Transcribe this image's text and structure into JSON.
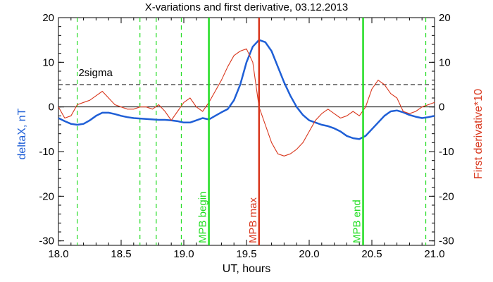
{
  "chart_data": {
    "type": "line",
    "title": "X-variations and first derivative, 03.12.2013",
    "xlabel": "UT, hours",
    "ylabel_left": "deltaX, nT",
    "ylabel_right": "First derivative*10",
    "xlim": [
      18.0,
      21.0
    ],
    "ylim": [
      -31,
      20
    ],
    "xticks": [
      "18.0",
      "18.5",
      "19.0",
      "19.5",
      "20.0",
      "20.5",
      "21.0"
    ],
    "yticks": [
      "20",
      "10",
      "0",
      "-10",
      "-20",
      "-30"
    ],
    "colors": {
      "deltaX": "#1f5fd6",
      "derivative": "#d9381e",
      "mpb_lines": "#22dd22",
      "mpb_max": "#d9381e",
      "reference": "#000000"
    },
    "sigma_label": "2sigma",
    "sigma_level": 5,
    "zero_level": 0,
    "vertical_markers": [
      {
        "x": 19.2,
        "label": "MPB begin",
        "style": "solid",
        "color": "#22dd22"
      },
      {
        "x": 19.6,
        "label": "MPB max",
        "style": "solid",
        "color": "#d9381e"
      },
      {
        "x": 20.43,
        "label": "MPB end",
        "style": "solid",
        "color": "#22dd22"
      }
    ],
    "dashed_markers": [
      18.15,
      18.65,
      18.78,
      18.98,
      20.93
    ],
    "series": [
      {
        "name": "deltaX, nT",
        "key": "deltaX",
        "x": [
          18.0,
          18.05,
          18.1,
          18.15,
          18.2,
          18.25,
          18.3,
          18.35,
          18.4,
          18.45,
          18.5,
          18.55,
          18.6,
          18.65,
          18.7,
          18.75,
          18.8,
          18.85,
          18.9,
          18.95,
          19.0,
          19.05,
          19.1,
          19.15,
          19.2,
          19.25,
          19.3,
          19.35,
          19.4,
          19.45,
          19.5,
          19.55,
          19.6,
          19.65,
          19.7,
          19.75,
          19.8,
          19.85,
          19.9,
          19.95,
          20.0,
          20.05,
          20.1,
          20.15,
          20.2,
          20.25,
          20.3,
          20.35,
          20.4,
          20.45,
          20.5,
          20.55,
          20.6,
          20.65,
          20.7,
          20.75,
          20.8,
          20.85,
          20.9,
          20.95,
          21.0
        ],
        "values": [
          -2.5,
          -3.2,
          -3.8,
          -4.0,
          -3.8,
          -3.0,
          -2.0,
          -1.3,
          -1.3,
          -1.6,
          -2.0,
          -2.3,
          -2.5,
          -2.6,
          -2.7,
          -2.8,
          -2.9,
          -2.9,
          -3.0,
          -3.2,
          -3.5,
          -3.5,
          -3.0,
          -2.5,
          -2.8,
          -2.0,
          -1.2,
          -0.5,
          1.5,
          5.0,
          10.0,
          13.5,
          15.0,
          14.5,
          12.5,
          9.0,
          5.5,
          2.5,
          0.0,
          -1.8,
          -3.0,
          -3.5,
          -4.0,
          -4.3,
          -4.8,
          -5.5,
          -6.5,
          -7.0,
          -7.2,
          -6.5,
          -5.0,
          -3.5,
          -2.0,
          -1.0,
          -0.8,
          -1.2,
          -1.8,
          -2.2,
          -2.5,
          -2.3,
          -2.0
        ]
      },
      {
        "name": "First derivative*10",
        "key": "derivative",
        "x": [
          18.0,
          18.05,
          18.1,
          18.15,
          18.2,
          18.25,
          18.3,
          18.35,
          18.4,
          18.45,
          18.5,
          18.55,
          18.6,
          18.65,
          18.7,
          18.75,
          18.8,
          18.85,
          18.9,
          18.95,
          19.0,
          19.05,
          19.1,
          19.15,
          19.2,
          19.25,
          19.3,
          19.35,
          19.4,
          19.45,
          19.5,
          19.55,
          19.6,
          19.65,
          19.7,
          19.75,
          19.8,
          19.85,
          19.9,
          19.95,
          20.0,
          20.05,
          20.1,
          20.15,
          20.2,
          20.25,
          20.3,
          20.35,
          20.4,
          20.45,
          20.5,
          20.55,
          20.6,
          20.65,
          20.7,
          20.75,
          20.8,
          20.85,
          20.9,
          20.95,
          21.0
        ],
        "values": [
          0.0,
          -2.5,
          -2.0,
          0.5,
          1.0,
          1.5,
          2.5,
          3.5,
          2.0,
          0.5,
          0.0,
          -0.5,
          -0.5,
          0.0,
          0.0,
          -0.5,
          0.5,
          -1.0,
          -3.0,
          -1.0,
          1.0,
          2.0,
          0.0,
          -1.0,
          1.0,
          3.5,
          6.0,
          9.0,
          11.5,
          12.5,
          13.0,
          10.0,
          0.0,
          -4.0,
          -8.0,
          -10.5,
          -11.0,
          -10.5,
          -9.5,
          -8.0,
          -5.5,
          -3.0,
          -1.5,
          -0.5,
          -1.5,
          -2.5,
          -2.0,
          -1.0,
          -2.0,
          0.0,
          4.0,
          6.0,
          5.0,
          3.0,
          2.0,
          -1.0,
          -1.5,
          -1.0,
          0.0,
          0.5,
          1.0
        ]
      }
    ],
    "legend": "none",
    "grid": false
  }
}
